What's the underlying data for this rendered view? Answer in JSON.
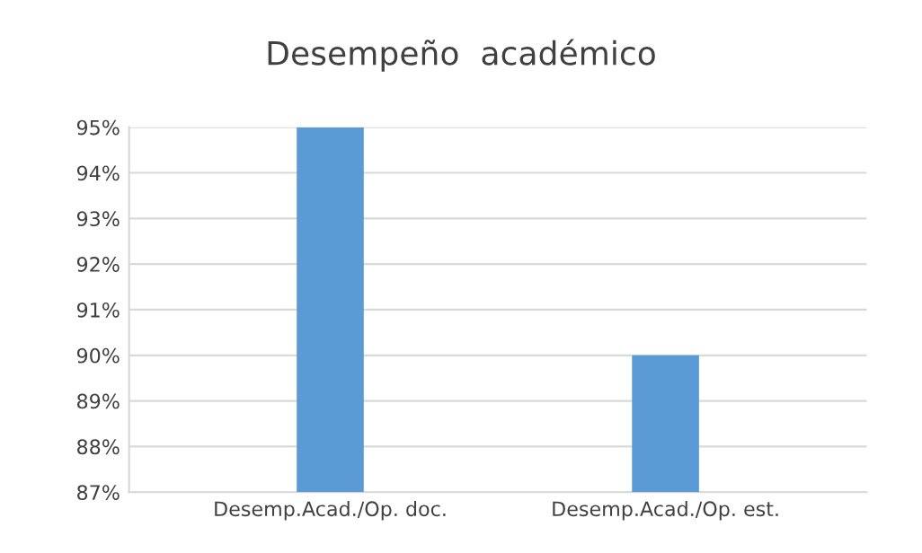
{
  "chart_data": {
    "type": "bar",
    "title": "Desempeño  académico",
    "categories": [
      "Desemp.Acad./Op. doc.",
      "Desemp.Acad./Op. est."
    ],
    "values": [
      95,
      90
    ],
    "color": "#5b9bd5",
    "ylim": [
      87,
      95
    ],
    "yticks": [
      {
        "value": 87,
        "label": "87%"
      },
      {
        "value": 88,
        "label": "88%"
      },
      {
        "value": 89,
        "label": "89%"
      },
      {
        "value": 90,
        "label": "90%"
      },
      {
        "value": 91,
        "label": "91%"
      },
      {
        "value": 92,
        "label": "92%"
      },
      {
        "value": 93,
        "label": "93%"
      },
      {
        "value": 94,
        "label": "94%"
      },
      {
        "value": 95,
        "label": "95%"
      }
    ],
    "grid": "y",
    "legend": false
  }
}
